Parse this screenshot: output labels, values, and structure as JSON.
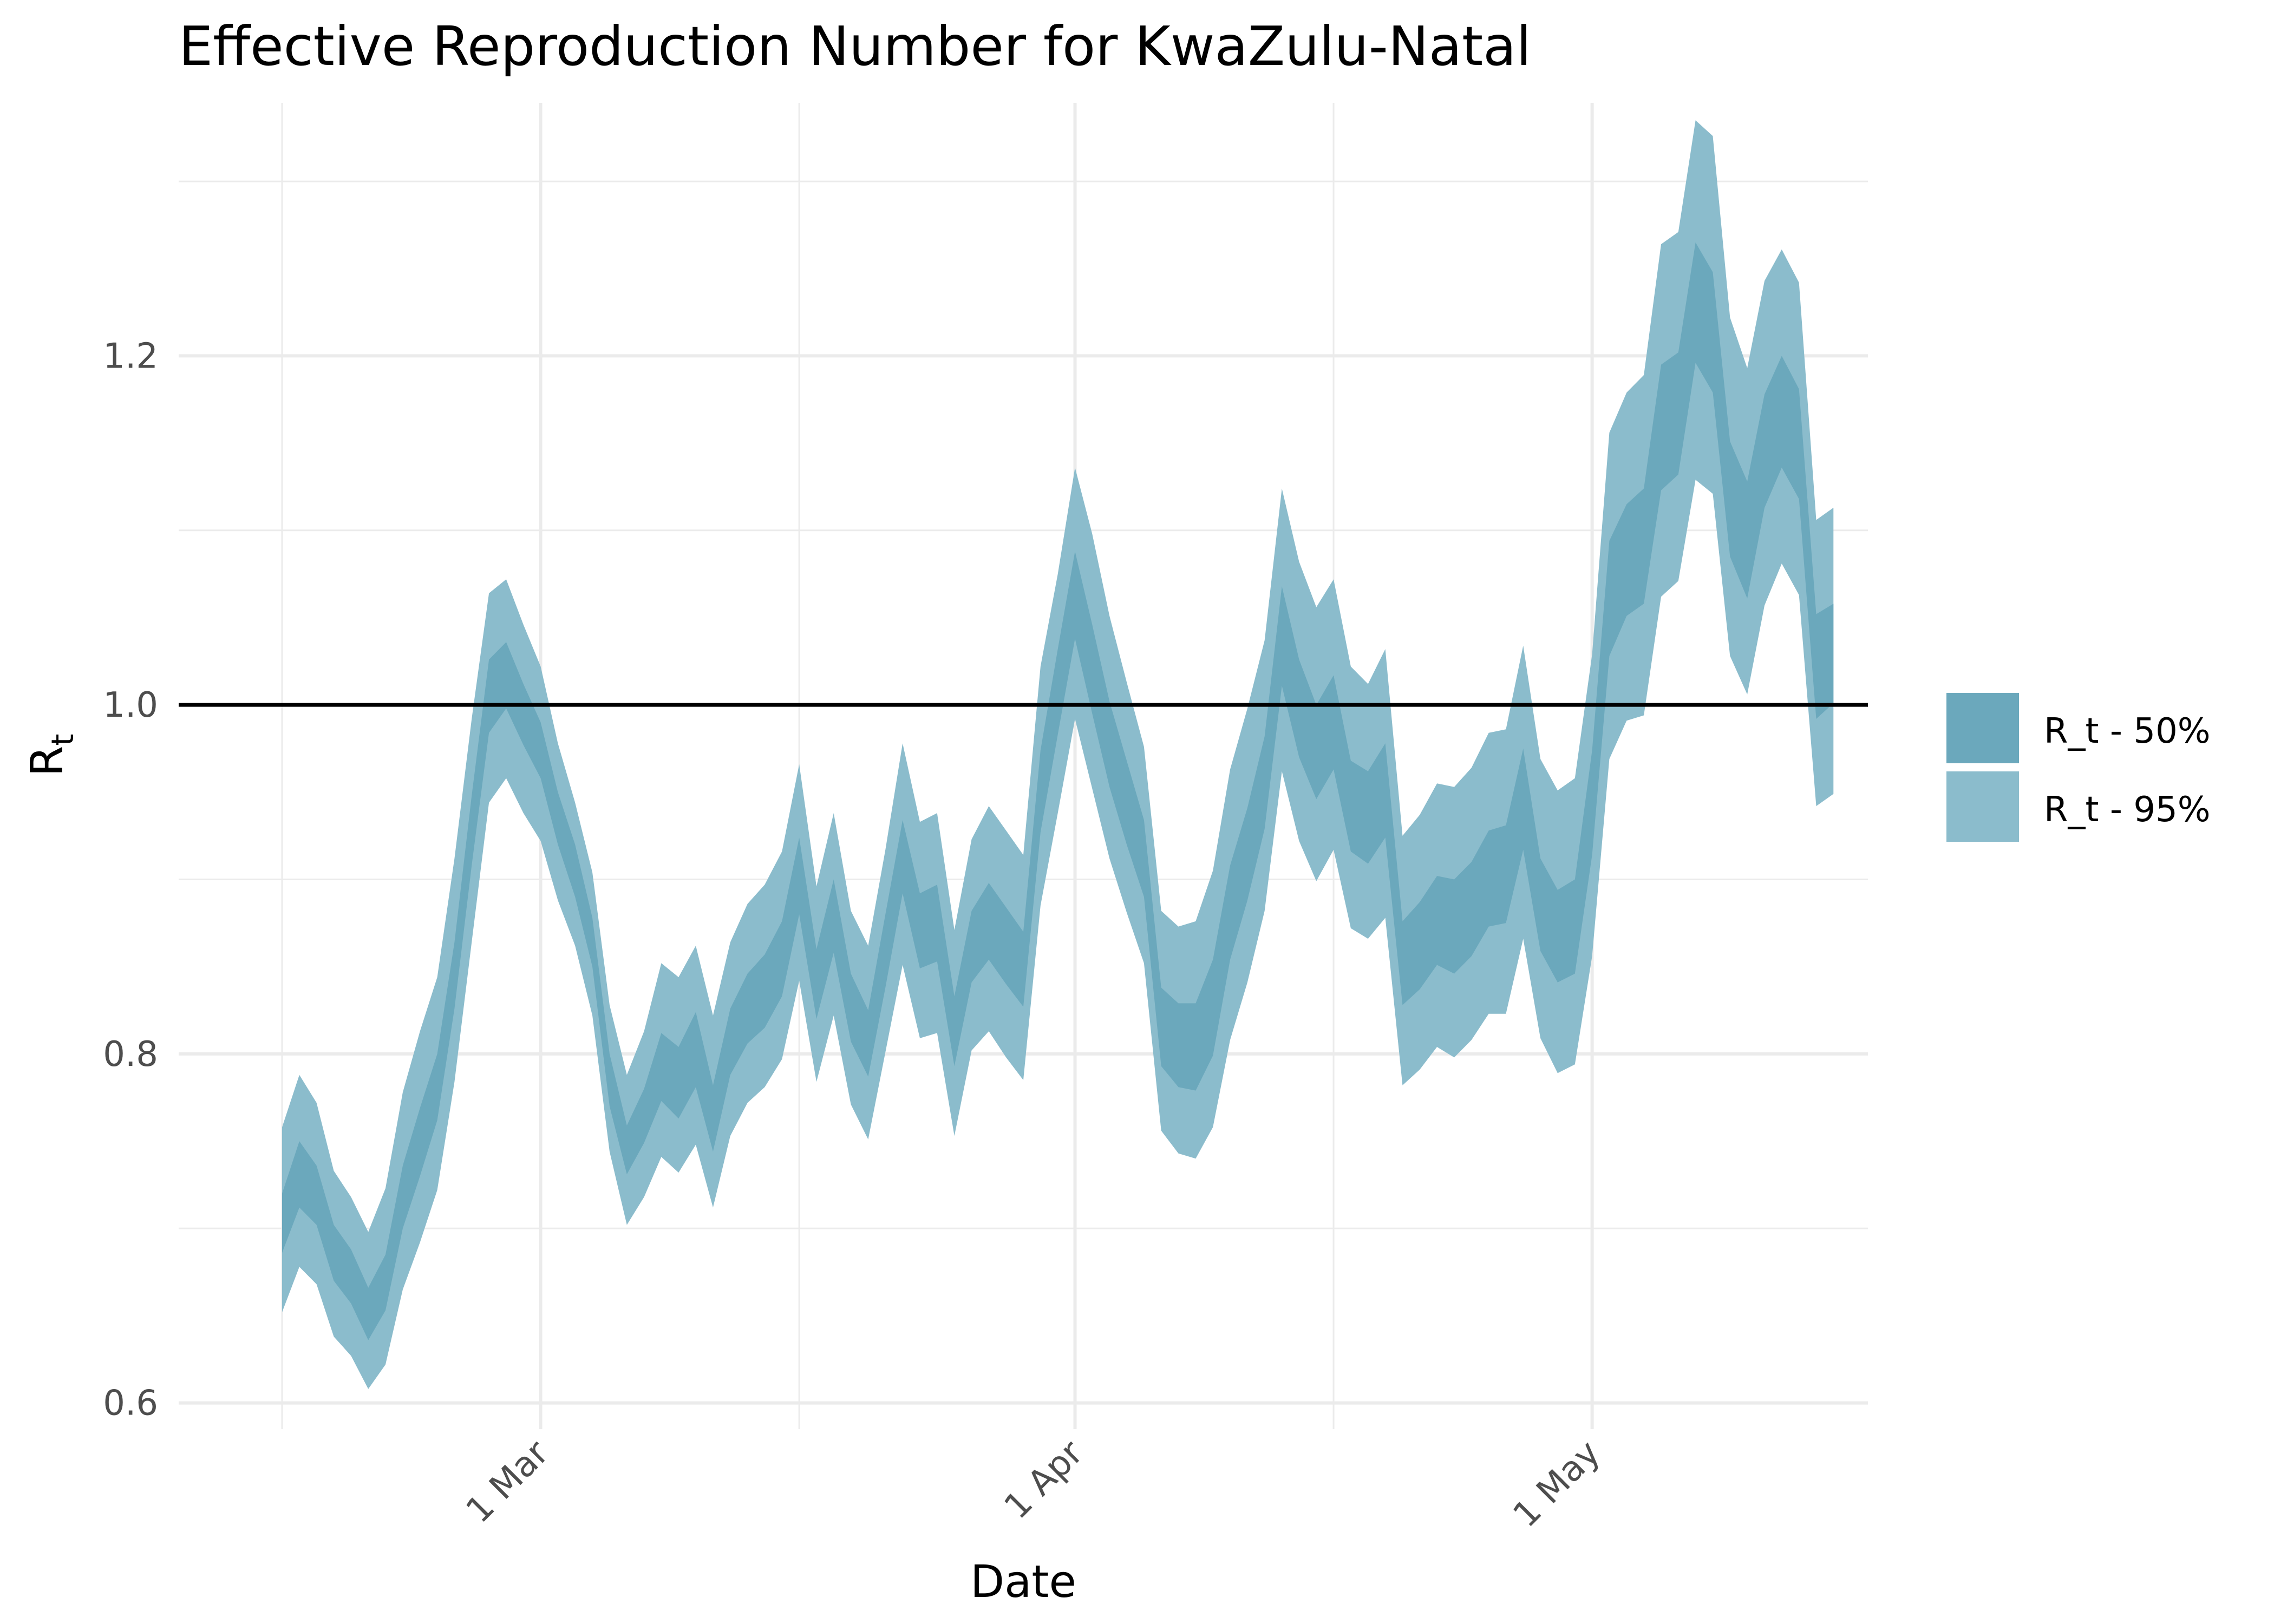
{
  "chart_data": {
    "type": "area",
    "title": "Effective Reproduction Number for KwaZulu-Natal",
    "xlabel": "Date",
    "ylabel": "R",
    "ylabel_subscript": "t",
    "x_ticks": [
      "1 Mar",
      "1 Apr",
      "1 May"
    ],
    "y_ticks": [
      "0.6",
      "0.8",
      "1.0",
      "1.2"
    ],
    "ylim": [
      0.585,
      1.345
    ],
    "xlim": [
      "2021-02-08",
      "2021-05-17"
    ],
    "grid": true,
    "legend_position": "right",
    "reference_line": 1.0,
    "colors": {
      "band50": "#6ba8bc",
      "band95": "#8bbccc",
      "refline": "#000000",
      "grid": "#ebebeb"
    },
    "x": [
      "2021-02-14",
      "2021-02-15",
      "2021-02-16",
      "2021-02-17",
      "2021-02-18",
      "2021-02-19",
      "2021-02-20",
      "2021-02-21",
      "2021-02-22",
      "2021-02-23",
      "2021-02-24",
      "2021-02-25",
      "2021-02-26",
      "2021-02-27",
      "2021-02-28",
      "2021-03-01",
      "2021-03-02",
      "2021-03-03",
      "2021-03-04",
      "2021-03-05",
      "2021-03-06",
      "2021-03-07",
      "2021-03-08",
      "2021-03-09",
      "2021-03-10",
      "2021-03-11",
      "2021-03-12",
      "2021-03-13",
      "2021-03-14",
      "2021-03-15",
      "2021-03-16",
      "2021-03-17",
      "2021-03-18",
      "2021-03-19",
      "2021-03-20",
      "2021-03-21",
      "2021-03-22",
      "2021-03-23",
      "2021-03-24",
      "2021-03-25",
      "2021-03-26",
      "2021-03-27",
      "2021-03-28",
      "2021-03-29",
      "2021-03-30",
      "2021-03-31",
      "2021-04-01",
      "2021-04-02",
      "2021-04-03",
      "2021-04-04",
      "2021-04-05",
      "2021-04-06",
      "2021-04-07",
      "2021-04-08",
      "2021-04-09",
      "2021-04-10",
      "2021-04-11",
      "2021-04-12",
      "2021-04-13",
      "2021-04-14",
      "2021-04-15",
      "2021-04-16",
      "2021-04-17",
      "2021-04-18",
      "2021-04-19",
      "2021-04-20",
      "2021-04-21",
      "2021-04-22",
      "2021-04-23",
      "2021-04-24",
      "2021-04-25",
      "2021-04-26",
      "2021-04-27",
      "2021-04-28",
      "2021-04-29",
      "2021-04-30",
      "2021-05-01",
      "2021-05-02",
      "2021-05-03",
      "2021-05-04",
      "2021-05-05",
      "2021-05-06",
      "2021-05-07",
      "2021-05-08",
      "2021-05-09",
      "2021-05-10",
      "2021-05-11",
      "2021-05-12",
      "2021-05-13",
      "2021-05-14",
      "2021-05-15"
    ],
    "series": [
      {
        "name": "R_t - 95%",
        "lower": [
          0.652,
          0.678,
          0.668,
          0.638,
          0.627,
          0.608,
          0.622,
          0.665,
          0.692,
          0.722,
          0.784,
          0.864,
          0.944,
          0.958,
          0.938,
          0.922,
          0.888,
          0.862,
          0.822,
          0.744,
          0.702,
          0.718,
          0.741,
          0.732,
          0.748,
          0.712,
          0.753,
          0.772,
          0.781,
          0.797,
          0.842,
          0.784,
          0.822,
          0.771,
          0.751,
          0.801,
          0.851,
          0.809,
          0.812,
          0.753,
          0.802,
          0.813,
          0.798,
          0.785,
          0.885,
          0.938,
          0.992,
          0.952,
          0.912,
          0.881,
          0.852,
          0.756,
          0.743,
          0.74,
          0.758,
          0.808,
          0.841,
          0.882,
          0.962,
          0.922,
          0.899,
          0.917,
          0.872,
          0.866,
          0.878,
          0.782,
          0.791,
          0.804,
          0.798,
          0.808,
          0.823,
          0.823,
          0.866,
          0.809,
          0.789,
          0.794,
          0.856,
          0.969,
          0.991,
          0.994,
          1.062,
          1.071,
          1.129,
          1.121,
          1.028,
          1.006,
          1.057,
          1.081,
          1.063,
          0.942,
          0.949
        ],
        "upper": [
          0.758,
          0.788,
          0.772,
          0.733,
          0.718,
          0.698,
          0.723,
          0.778,
          0.813,
          0.844,
          0.912,
          0.992,
          1.064,
          1.072,
          1.046,
          1.022,
          0.978,
          0.944,
          0.904,
          0.828,
          0.788,
          0.813,
          0.852,
          0.844,
          0.862,
          0.822,
          0.864,
          0.886,
          0.897,
          0.916,
          0.966,
          0.896,
          0.938,
          0.882,
          0.862,
          0.917,
          0.978,
          0.933,
          0.938,
          0.871,
          0.923,
          0.942,
          0.928,
          0.914,
          1.022,
          1.075,
          1.136,
          1.098,
          1.051,
          1.013,
          0.976,
          0.882,
          0.873,
          0.876,
          0.905,
          0.963,
          0.998,
          1.037,
          1.124,
          1.082,
          1.056,
          1.072,
          1.022,
          1.012,
          1.032,
          0.925,
          0.937,
          0.955,
          0.953,
          0.964,
          0.984,
          0.986,
          1.034,
          0.969,
          0.951,
          0.958,
          1.029,
          1.156,
          1.179,
          1.189,
          1.264,
          1.271,
          1.335,
          1.326,
          1.222,
          1.193,
          1.243,
          1.261,
          1.242,
          1.106,
          1.113
        ]
      },
      {
        "name": "R_t - 50%",
        "lower": [
          0.686,
          0.712,
          0.702,
          0.67,
          0.657,
          0.636,
          0.653,
          0.7,
          0.73,
          0.762,
          0.826,
          0.908,
          0.984,
          0.998,
          0.977,
          0.958,
          0.92,
          0.89,
          0.85,
          0.77,
          0.731,
          0.749,
          0.773,
          0.763,
          0.781,
          0.744,
          0.788,
          0.806,
          0.815,
          0.833,
          0.88,
          0.82,
          0.858,
          0.807,
          0.787,
          0.838,
          0.892,
          0.849,
          0.853,
          0.793,
          0.841,
          0.854,
          0.84,
          0.827,
          0.927,
          0.983,
          1.038,
          0.995,
          0.953,
          0.92,
          0.89,
          0.793,
          0.781,
          0.779,
          0.799,
          0.854,
          0.888,
          0.929,
          1.011,
          0.97,
          0.946,
          0.963,
          0.916,
          0.909,
          0.924,
          0.828,
          0.837,
          0.851,
          0.846,
          0.856,
          0.873,
          0.875,
          0.917,
          0.859,
          0.841,
          0.846,
          0.914,
          1.028,
          1.051,
          1.058,
          1.123,
          1.132,
          1.196,
          1.179,
          1.085,
          1.061,
          1.113,
          1.136,
          1.118,
          0.992,
          1.001
        ],
        "upper": [
          0.72,
          0.75,
          0.736,
          0.702,
          0.688,
          0.666,
          0.685,
          0.736,
          0.769,
          0.8,
          0.864,
          0.948,
          1.026,
          1.036,
          1.012,
          0.99,
          0.95,
          0.92,
          0.878,
          0.8,
          0.759,
          0.78,
          0.812,
          0.804,
          0.824,
          0.782,
          0.826,
          0.846,
          0.857,
          0.876,
          0.924,
          0.86,
          0.9,
          0.846,
          0.825,
          0.88,
          0.934,
          0.892,
          0.897,
          0.833,
          0.882,
          0.898,
          0.884,
          0.87,
          0.974,
          1.032,
          1.088,
          1.046,
          1.002,
          0.968,
          0.934,
          0.838,
          0.829,
          0.829,
          0.854,
          0.908,
          0.941,
          0.982,
          1.068,
          1.026,
          1.0,
          1.017,
          0.968,
          0.962,
          0.978,
          0.876,
          0.887,
          0.902,
          0.9,
          0.91,
          0.928,
          0.931,
          0.975,
          0.912,
          0.894,
          0.9,
          0.974,
          1.094,
          1.115,
          1.124,
          1.195,
          1.202,
          1.265,
          1.248,
          1.151,
          1.128,
          1.178,
          1.2,
          1.181,
          1.052,
          1.058
        ]
      }
    ]
  }
}
